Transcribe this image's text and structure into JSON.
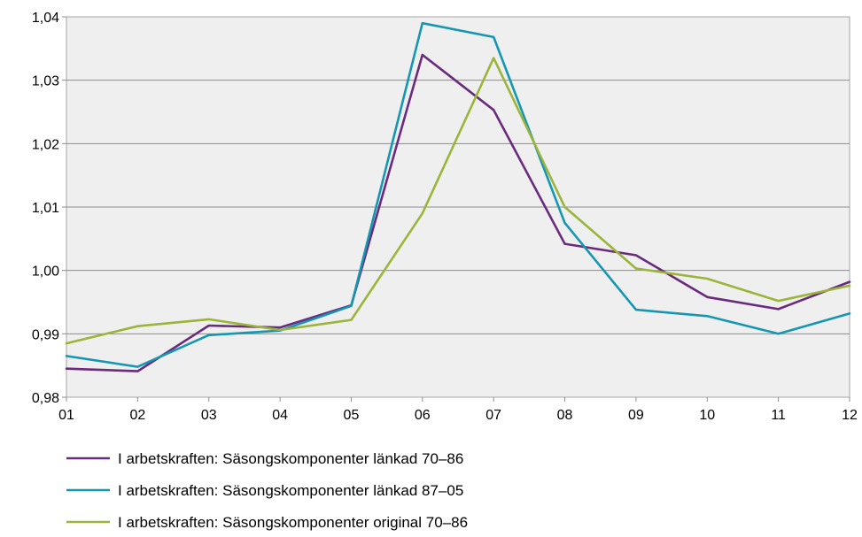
{
  "chart_data": {
    "type": "line",
    "title": "",
    "xlabel": "",
    "ylabel": "",
    "categories": [
      "01",
      "02",
      "03",
      "04",
      "05",
      "06",
      "07",
      "08",
      "09",
      "10",
      "11",
      "12"
    ],
    "ylim": [
      0.98,
      1.04
    ],
    "yticks": [
      0.98,
      0.99,
      1.0,
      1.01,
      1.02,
      1.03,
      1.04
    ],
    "ytick_labels": [
      "0,98",
      "0,99",
      "1,00",
      "1,01",
      "1,02",
      "1,03",
      "1,04"
    ],
    "grid": "horizontal",
    "legend_position": "bottom",
    "series": [
      {
        "name": "I arbetskraften: Säsongskomponenter länkad 70–86",
        "color": "#6a2a7e",
        "values": [
          0.9845,
          0.9841,
          0.9913,
          0.991,
          0.9945,
          1.034,
          1.0253,
          1.0042,
          1.0024,
          0.9958,
          0.9939,
          0.9982
        ]
      },
      {
        "name": "I arbetskraften: Säsongskomponenter länkad 87–05",
        "color": "#1596b2",
        "values": [
          0.9865,
          0.9848,
          0.9898,
          0.9905,
          0.9944,
          1.039,
          1.0368,
          1.0075,
          0.9938,
          0.9928,
          0.99,
          0.9932
        ]
      },
      {
        "name": "I arbetskraften: Säsongskomponenter original 70–86",
        "color": "#9bb43a",
        "values": [
          0.9885,
          0.9912,
          0.9923,
          0.9906,
          0.9922,
          1.009,
          1.0335,
          1.01,
          1.0003,
          0.9987,
          0.9952,
          0.9976
        ]
      }
    ]
  }
}
